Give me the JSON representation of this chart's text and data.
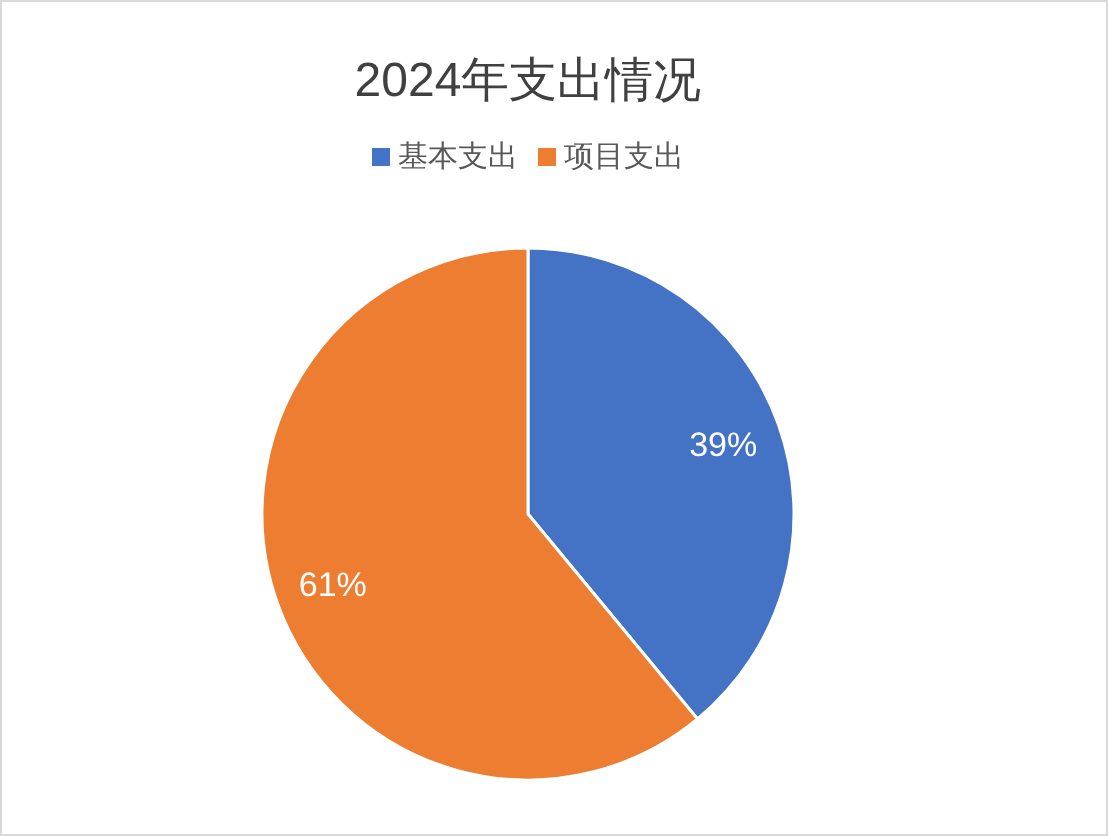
{
  "chart_data": {
    "type": "pie",
    "title": "2024年支出情况",
    "categories": [
      "基本支出",
      "项目支出"
    ],
    "values": [
      39,
      61
    ],
    "colors": [
      "#4472c4",
      "#ed7d31"
    ],
    "value_labels": [
      "39%",
      "61%"
    ],
    "legend": "top"
  }
}
